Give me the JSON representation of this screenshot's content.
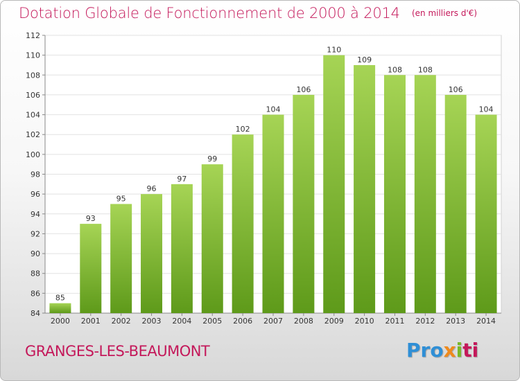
{
  "header": {
    "title": "Dotation Globale de Fonctionnement de 2000 à 2014",
    "unit": "(en milliers d'€)"
  },
  "footer": {
    "commune": "GRANGES-LES-BEAUMONT",
    "logo_parts": [
      "Pro",
      "x",
      "i",
      "ti"
    ]
  },
  "colors": {
    "bar_top": "#a6d455",
    "bar_bottom": "#5e9a1a",
    "title": "#c4185a"
  },
  "chart_data": {
    "type": "bar",
    "title": "Dotation Globale de Fonctionnement de 2000 à 2014",
    "categories": [
      "2000",
      "2001",
      "2002",
      "2003",
      "2004",
      "2005",
      "2006",
      "2007",
      "2008",
      "2009",
      "2010",
      "2011",
      "2012",
      "2013",
      "2014"
    ],
    "values": [
      85,
      93,
      95,
      96,
      97,
      99,
      102,
      104,
      106,
      110,
      109,
      108,
      108,
      106,
      104
    ],
    "ylim": [
      84,
      112
    ],
    "yticks": [
      84,
      86,
      88,
      90,
      92,
      94,
      96,
      98,
      100,
      102,
      104,
      106,
      108,
      110,
      112
    ],
    "grid": true,
    "legend": "none"
  }
}
